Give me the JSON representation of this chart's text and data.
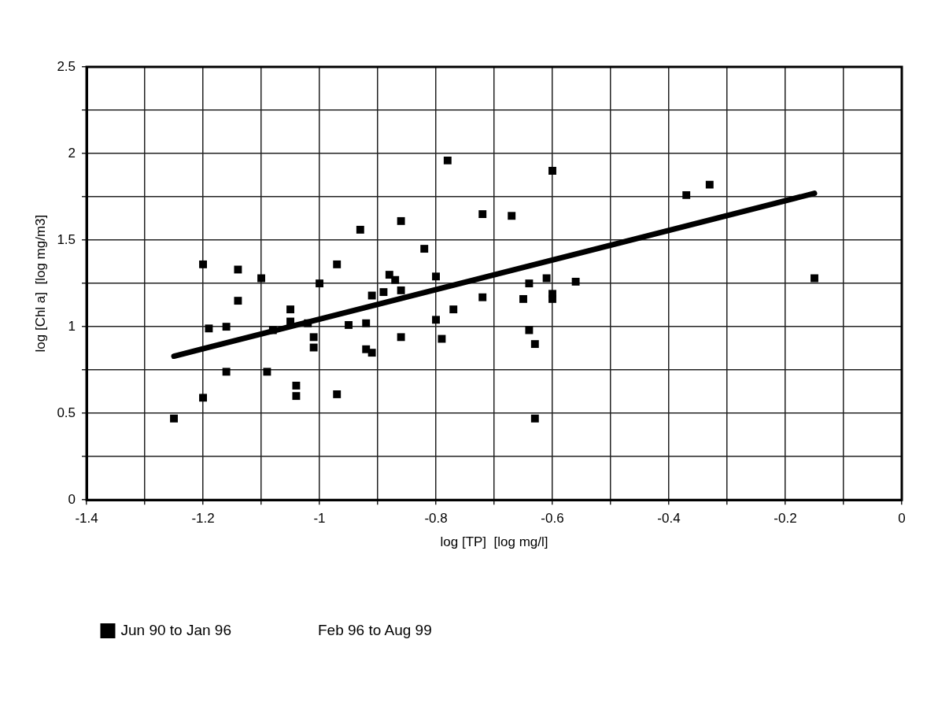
{
  "chart_data": {
    "type": "scatter",
    "xlabel": "log [TP]  [log mg/l]",
    "ylabel": "log [Chl a]  [log mg/m3]",
    "xlim": [
      -1.4,
      0
    ],
    "ylim": [
      0,
      2.5
    ],
    "xticks": [
      -1.4,
      {
        "value": -1.3,
        "label": null
      },
      -1.2,
      {
        "value": -1.1,
        "label": null
      },
      -1,
      {
        "value": -0.9,
        "label": null
      },
      -0.8,
      {
        "value": -0.7,
        "label": null
      },
      -0.6,
      {
        "value": -0.5,
        "label": null
      },
      -0.4,
      {
        "value": -0.3,
        "label": null
      },
      -0.2,
      {
        "value": -0.1,
        "label": null
      },
      0
    ],
    "yticks": [
      0,
      {
        "value": 0.25,
        "label": null
      },
      0.5,
      {
        "value": 0.75,
        "label": null
      },
      1,
      {
        "value": 1.25,
        "label": null
      },
      1.5,
      {
        "value": 1.75,
        "label": null
      },
      2,
      {
        "value": 2.25,
        "label": null
      },
      2.5
    ],
    "grid": true,
    "legend": "bottom",
    "marker": "square",
    "annotations": [
      "Feb 96 to Aug 99"
    ],
    "series": [
      {
        "name": "Jun 90 to Jan 96",
        "color": "#000000",
        "x": [
          -1.25,
          -1.2,
          -1.2,
          -1.14,
          -1.1,
          -1.14,
          -1.19,
          -1.16,
          -1.16,
          -1.09,
          -1.08,
          -1.05,
          -1.05,
          -1.04,
          -1.04,
          -1.02,
          -1.01,
          -1.01,
          -1.0,
          -0.97,
          -0.97,
          -0.93,
          -0.95,
          -0.92,
          -0.92,
          -0.91,
          -0.91,
          -0.88,
          -0.87,
          -0.86,
          -0.89,
          -0.86,
          -0.82,
          -0.86,
          -0.8,
          -0.8,
          -0.79,
          -0.78,
          -0.77,
          -0.72,
          -0.72,
          -0.6,
          -0.67,
          -0.65,
          -0.64,
          -0.61,
          -0.6,
          -0.6,
          -0.56,
          -0.64,
          -0.63,
          -0.63,
          -0.37,
          -0.33,
          -0.15
        ],
        "values": [
          0.47,
          0.59,
          1.36,
          1.33,
          1.28,
          1.15,
          0.99,
          1.0,
          0.74,
          0.74,
          0.98,
          1.1,
          1.03,
          0.66,
          0.6,
          1.02,
          0.94,
          0.88,
          1.25,
          0.61,
          1.36,
          1.56,
          1.01,
          1.02,
          0.87,
          0.85,
          1.18,
          1.3,
          1.27,
          1.21,
          1.2,
          1.61,
          1.45,
          0.94,
          1.29,
          1.04,
          0.93,
          1.96,
          1.1,
          1.17,
          1.65,
          1.9,
          1.64,
          1.16,
          1.25,
          1.28,
          1.19,
          1.16,
          1.26,
          0.98,
          0.9,
          0.47,
          1.76,
          1.82,
          1.28
        ]
      },
      {
        "type": "line",
        "color": "#000000",
        "x": [
          -1.25,
          -0.15
        ],
        "values": [
          0.83,
          1.77
        ],
        "marker": "none"
      }
    ]
  }
}
